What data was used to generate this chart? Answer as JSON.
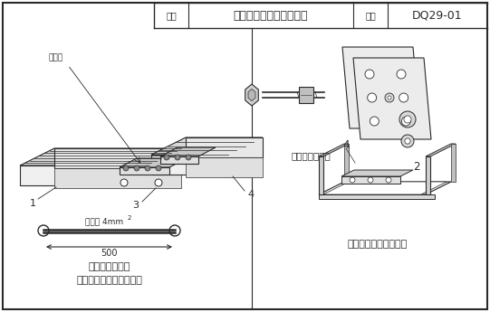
{
  "border_color": "#2a2a2a",
  "title_text1": "图名",
  "title_text2": "线槽、桥架接地跨接安装",
  "title_text3": "图号",
  "title_text4": "DQ29-01",
  "label_jianjiechu": "连接处",
  "label_1": "1",
  "label_3": "3",
  "label_4_left": "4",
  "label_fang": "方矩螺栓大样图",
  "label_2": "2",
  "label_4_right": "4",
  "label_bujiaodixian": "跨接地线大样图",
  "label_text1": "槽型桥架跨接地安装方法",
  "label_text2": "镀锌线槽接地安装方法",
  "label_bujiao": "不小于 4mm",
  "label_sup": "2",
  "label_500": "500"
}
